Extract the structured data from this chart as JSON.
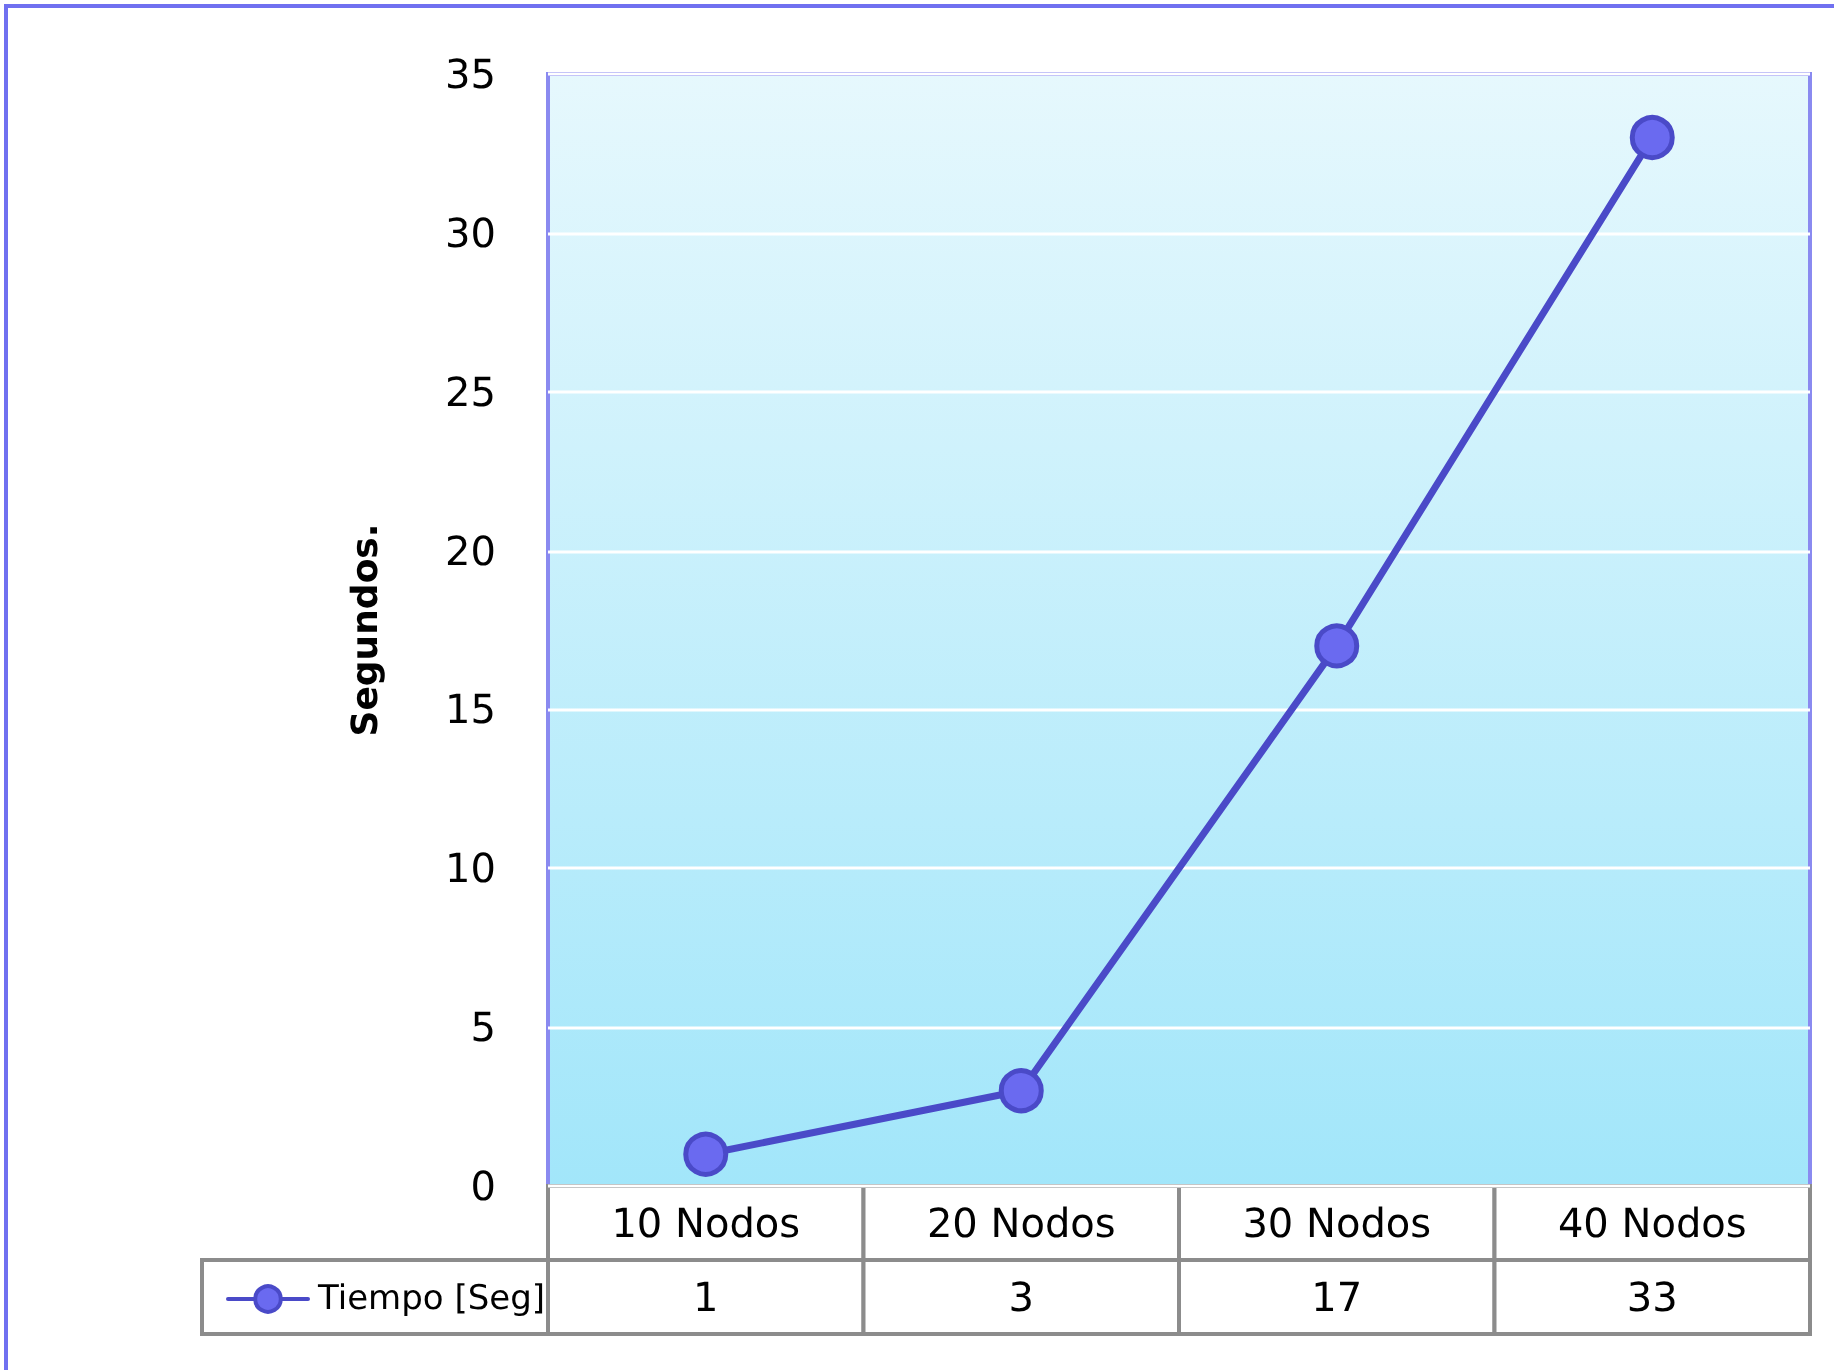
{
  "chart_data": {
    "type": "line",
    "ylabel": "Segundos.",
    "categories": [
      "10 Nodos",
      "20 Nodos",
      "30 Nodos",
      "40 Nodos"
    ],
    "series": [
      {
        "name": "Tiempo [Seg]",
        "color": "#4a4ac8",
        "values": [
          1,
          3,
          17,
          33
        ]
      }
    ],
    "ylim": [
      0,
      35
    ],
    "yticks": [
      0,
      5,
      10,
      15,
      20,
      25,
      30,
      35
    ],
    "grid": "y",
    "legend": "bottom left",
    "marker": "circle",
    "line_style": "solid",
    "data_labels": true
  }
}
